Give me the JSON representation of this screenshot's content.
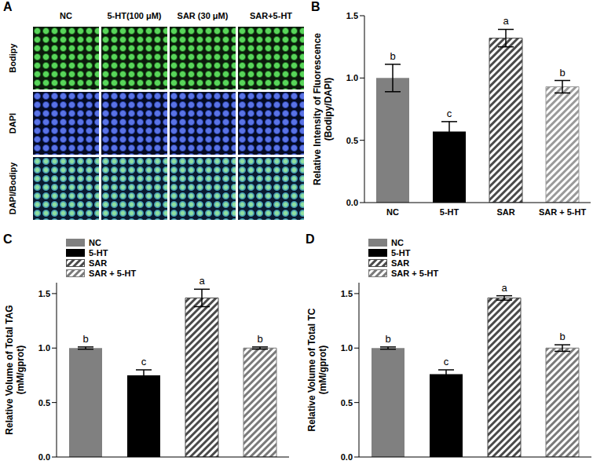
{
  "image_panel": {
    "panel": "A",
    "columns": [
      "NC",
      "5-HT(100 μM)",
      "SAR (30 μM)",
      "SAR+5-HT"
    ],
    "rows": [
      "Bodipy",
      "DAPI",
      "DAPI/Bodipy"
    ]
  },
  "chart_data": [
    {
      "panel": "B",
      "type": "bar",
      "y_label": "Relative Intensity of Fluorescence (Bodipy/DAPI)",
      "categories": [
        "NC",
        "5-HT",
        "SAR",
        "SAR + 5-HT"
      ],
      "values": [
        1.0,
        0.57,
        1.32,
        0.93
      ],
      "errors": [
        0.11,
        0.08,
        0.07,
        0.05
      ],
      "significance": [
        "b",
        "c",
        "a",
        "b"
      ],
      "colors": [
        "#808080",
        "#000000",
        "#4a4a4a",
        "#9a9a9a"
      ],
      "ylim": [
        0,
        1.5
      ],
      "yticks": [
        {
          "value": 0,
          "label": "0.0"
        },
        {
          "value": 0.5,
          "label": "0.5"
        },
        {
          "value": 1,
          "label": "1.0"
        },
        {
          "value": 1.5,
          "label": "1.5"
        }
      ],
      "tick_labels": true
    },
    {
      "panel": "C",
      "type": "bar",
      "y_label": "Relative Volume of Total TAG (mM/gprot)",
      "categories": [
        "NC",
        "5-HT",
        "SAR",
        "SAR + 5-HT"
      ],
      "values": [
        1.0,
        0.75,
        1.46,
        1.0
      ],
      "errors": [
        0.01,
        0.05,
        0.08,
        0.01
      ],
      "significance": [
        "b",
        "c",
        "a",
        "b"
      ],
      "colors": [
        "#808080",
        "#000000",
        "#4a4a4a",
        "#7a7a7a"
      ],
      "ylim": [
        0,
        1.6
      ],
      "yticks": [
        {
          "value": 0,
          "label": "0.0"
        },
        {
          "value": 0.5,
          "label": "0.5"
        },
        {
          "value": 1,
          "label": "1.0"
        },
        {
          "value": 1.5,
          "label": "1.5"
        }
      ],
      "tick_labels": "y",
      "legend": "upper left"
    },
    {
      "panel": "D",
      "type": "bar",
      "y_label": "Relative Volume of Total TC (mM/gprot)",
      "categories": [
        "NC",
        "5-HT",
        "SAR",
        "SAR + 5-HT"
      ],
      "values": [
        1.0,
        0.76,
        1.46,
        1.0
      ],
      "errors": [
        0.01,
        0.04,
        0.02,
        0.03
      ],
      "significance": [
        "b",
        "c",
        "a",
        "b"
      ],
      "colors": [
        "#808080",
        "#000000",
        "#4a4a4a",
        "#7a7a7a"
      ],
      "ylim": [
        0,
        1.6
      ],
      "yticks": [
        {
          "value": 0,
          "label": "0.0"
        },
        {
          "value": 0.5,
          "label": "0.5"
        },
        {
          "value": 1,
          "label": "1.0"
        },
        {
          "value": 1.5,
          "label": "1.5"
        }
      ],
      "tick_labels": "y",
      "legend": "upper left"
    }
  ]
}
